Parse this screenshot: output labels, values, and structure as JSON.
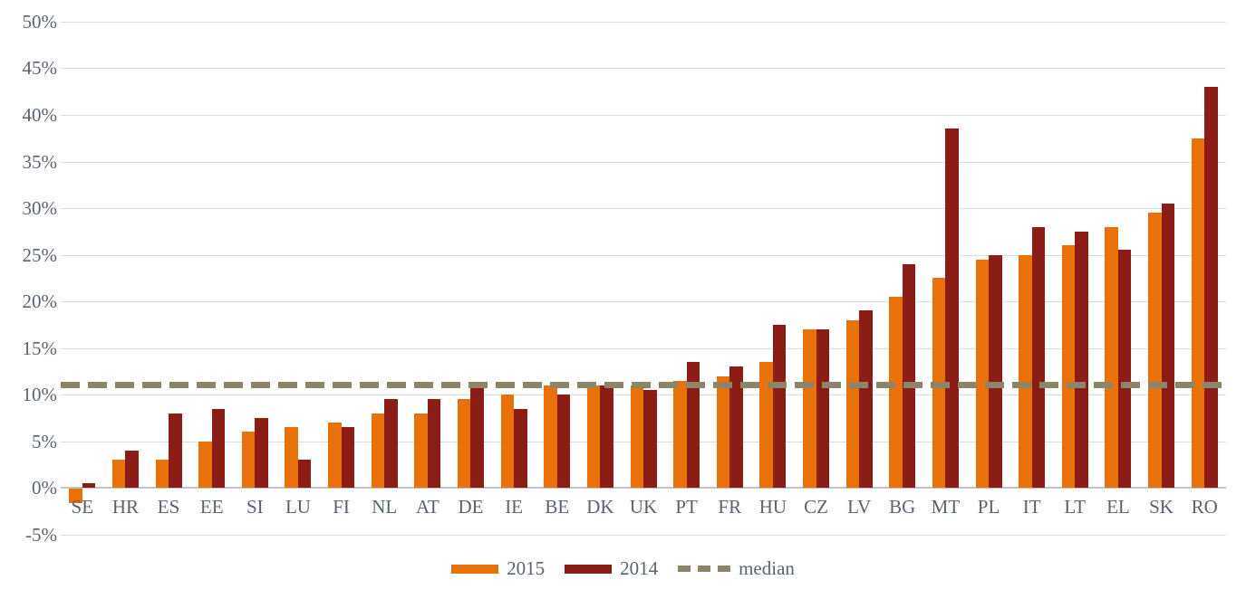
{
  "chart_data": {
    "type": "bar",
    "title": "",
    "categories": [
      "SE",
      "HR",
      "ES",
      "EE",
      "SI",
      "LU",
      "FI",
      "NL",
      "AT",
      "DE",
      "IE",
      "BE",
      "DK",
      "UK",
      "PT",
      "FR",
      "HU",
      "CZ",
      "LV",
      "BG",
      "MT",
      "PL",
      "IT",
      "LT",
      "EL",
      "SK",
      "RO"
    ],
    "series": [
      {
        "name": "2015",
        "color": "#E8710A",
        "values": [
          -1.5,
          3,
          3,
          5,
          6,
          6.5,
          7,
          8,
          8,
          9.5,
          10,
          11,
          11,
          11,
          11.5,
          12,
          13.5,
          17,
          18,
          20.5,
          22.5,
          24.5,
          25,
          26,
          28,
          29.5,
          37.5
        ]
      },
      {
        "name": "2014",
        "color": "#8B1D16",
        "values": [
          0.5,
          4,
          8,
          8.5,
          7.5,
          3,
          6.5,
          9.5,
          9.5,
          11,
          8.5,
          10,
          11,
          10.5,
          13.5,
          13,
          17.5,
          17,
          19,
          24,
          38.5,
          25,
          28,
          27.5,
          25.5,
          30.5,
          43
        ]
      }
    ],
    "median": {
      "label": "median",
      "value": 11,
      "color": "#8C8569"
    },
    "y_axis": {
      "min": -5,
      "max": 50,
      "step": 5,
      "unit": "%",
      "ticks": [
        {
          "value": 50,
          "label": "50%"
        },
        {
          "value": 45,
          "label": "45%"
        },
        {
          "value": 40,
          "label": "40%"
        },
        {
          "value": 35,
          "label": "35%"
        },
        {
          "value": 30,
          "label": "30%"
        },
        {
          "value": 25,
          "label": "25%"
        },
        {
          "value": 20,
          "label": "20%"
        },
        {
          "value": 15,
          "label": "15%"
        },
        {
          "value": 10,
          "label": "10%"
        },
        {
          "value": 5,
          "label": "5%"
        },
        {
          "value": 0,
          "label": "0%"
        },
        {
          "value": -5,
          "label": "-5%"
        }
      ]
    },
    "grid": true,
    "legend_position": "bottom",
    "colors": {
      "gridline": "#dcdcdc",
      "zero_line": "#c3c3c3",
      "axis_text": "#5a6370",
      "background": "#FFFFFF"
    }
  }
}
